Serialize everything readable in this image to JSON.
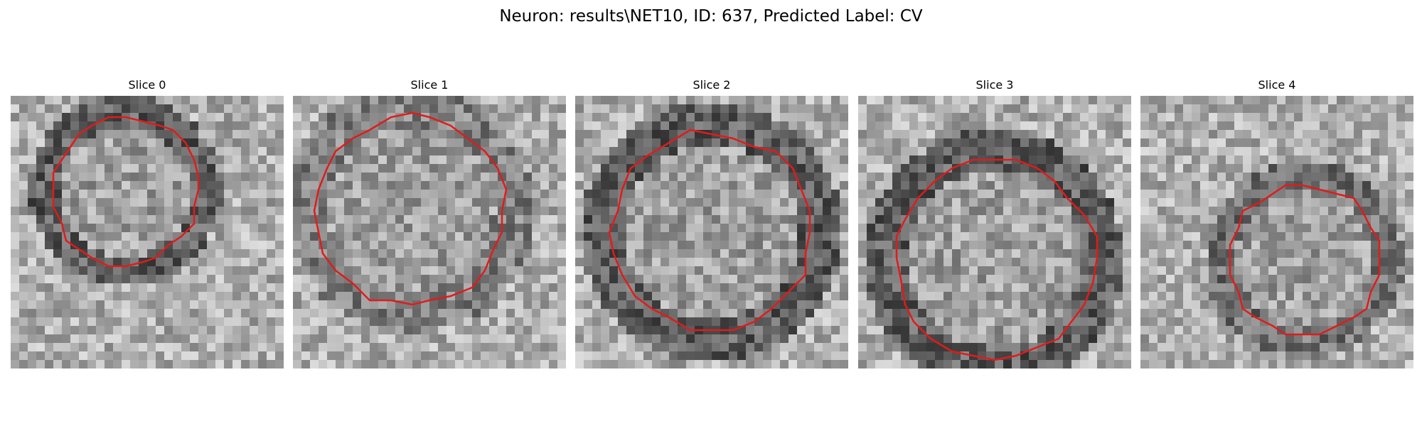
{
  "figure": {
    "title": "Neuron: results\\NET10, ID: 637, Predicted Label: CV"
  },
  "panels": [
    {
      "title": "Slice 0",
      "ring": "dark",
      "seed": 11,
      "center": [
        0.42,
        0.35
      ],
      "radius": 0.28,
      "contour_color": "#e11b1b"
    },
    {
      "title": "Slice 1",
      "ring": "light",
      "seed": 23,
      "center": [
        0.43,
        0.42
      ],
      "radius": 0.36,
      "contour_color": "#e11b1b"
    },
    {
      "title": "Slice 2",
      "ring": "dark",
      "seed": 37,
      "center": [
        0.5,
        0.5
      ],
      "radius": 0.38,
      "contour_color": "#e11b1b"
    },
    {
      "title": "Slice 3",
      "ring": "dark",
      "seed": 41,
      "center": [
        0.5,
        0.6
      ],
      "radius": 0.38,
      "contour_color": "#e11b1b"
    },
    {
      "title": "Slice 4",
      "ring": "mid",
      "seed": 53,
      "center": [
        0.6,
        0.6
      ],
      "radius": 0.29,
      "contour_color": "#e11b1b"
    }
  ]
}
